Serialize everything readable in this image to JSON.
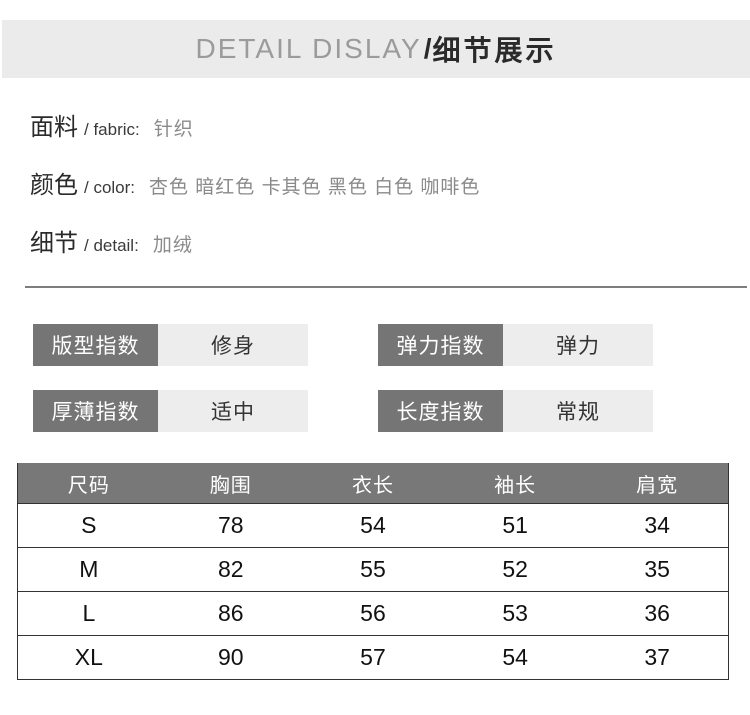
{
  "header": {
    "title_en": "DETAIL DISLAY",
    "slash": "/",
    "title_zh": "细节展示"
  },
  "info_rows": [
    {
      "label_zh": "面料",
      "label_en": "/ fabric:",
      "value": "针织"
    },
    {
      "label_zh": "颜色",
      "label_en": "/ color:",
      "value": "杏色 暗红色 卡其色 黑色 白色 咖啡色"
    },
    {
      "label_zh": "细节",
      "label_en": "/ detail:",
      "value": "加绒"
    }
  ],
  "attributes": [
    {
      "label": "版型指数",
      "value": "修身"
    },
    {
      "label": "弹力指数",
      "value": "弹力"
    },
    {
      "label": "厚薄指数",
      "value": "适中"
    },
    {
      "label": "长度指数",
      "value": "常规"
    }
  ],
  "size_table": {
    "columns": [
      "尺码",
      "胸围",
      "衣长",
      "袖长",
      "肩宽"
    ],
    "rows": [
      [
        "S",
        "78",
        "54",
        "51",
        "34"
      ],
      [
        "M",
        "82",
        "55",
        "52",
        "35"
      ],
      [
        "L",
        "86",
        "56",
        "53",
        "36"
      ],
      [
        "XL",
        "90",
        "57",
        "54",
        "37"
      ]
    ]
  },
  "colors": {
    "title_bar_bg": "#ebebeb",
    "title_en_color": "#9b9b9b",
    "title_zh_color": "#2a2a2a",
    "attr_label_bg": "#757575",
    "attr_value_bg": "#ededed",
    "table_header_bg": "#787878",
    "table_border": "#333333",
    "info_value_color": "#8a8a8a"
  }
}
